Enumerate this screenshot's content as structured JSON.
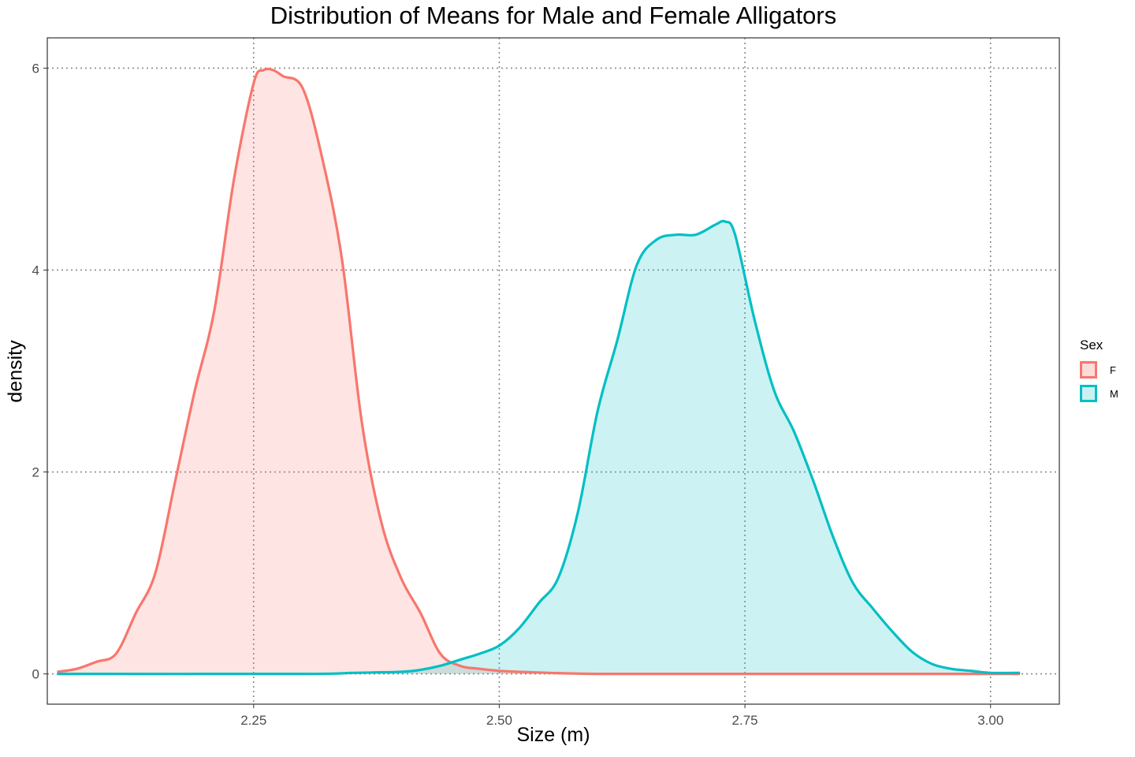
{
  "chart_data": {
    "type": "area",
    "title": "Distribution of Means for Male and Female Alligators",
    "xlabel": "Size (m)",
    "ylabel": "density",
    "xlim": [
      2.04,
      3.07
    ],
    "ylim": [
      -0.3,
      6.3
    ],
    "x_ticks": [
      2.25,
      2.5,
      2.75,
      3.0
    ],
    "x_tick_labels": [
      "2.25",
      "2.50",
      "2.75",
      "3.00"
    ],
    "y_ticks": [
      0,
      2,
      4,
      6
    ],
    "y_tick_labels": [
      "0",
      "2",
      "4",
      "6"
    ],
    "grid": "dotted major gridlines",
    "legend": {
      "title": "Sex",
      "placement": "right",
      "entries": [
        {
          "label": "F",
          "line_color": "#F8766D",
          "fill_color": "#FDDCDA"
        },
        {
          "label": "M",
          "line_color": "#00BFC4",
          "fill_color": "#CCF0F1"
        }
      ]
    },
    "series": [
      {
        "name": "F",
        "x": [
          2.05,
          2.07,
          2.09,
          2.11,
          2.13,
          2.15,
          2.17,
          2.19,
          2.21,
          2.23,
          2.25,
          2.26,
          2.27,
          2.28,
          2.3,
          2.32,
          2.34,
          2.36,
          2.38,
          2.4,
          2.42,
          2.44,
          2.46,
          2.48,
          2.5,
          2.52,
          2.55,
          2.6,
          2.7,
          2.8,
          2.9,
          3.0,
          3.03
        ],
        "y": [
          0.02,
          0.05,
          0.12,
          0.2,
          0.6,
          1.0,
          1.9,
          2.8,
          3.6,
          4.9,
          5.85,
          5.98,
          5.98,
          5.92,
          5.8,
          5.1,
          4.1,
          2.5,
          1.5,
          0.95,
          0.6,
          0.2,
          0.08,
          0.05,
          0.03,
          0.02,
          0.01,
          0.0,
          0.0,
          0.0,
          0.0,
          0.0,
          0.0
        ]
      },
      {
        "name": "M",
        "x": [
          2.05,
          2.3,
          2.35,
          2.4,
          2.42,
          2.44,
          2.46,
          2.48,
          2.5,
          2.52,
          2.54,
          2.56,
          2.58,
          2.6,
          2.62,
          2.64,
          2.66,
          2.68,
          2.7,
          2.72,
          2.73,
          2.74,
          2.76,
          2.78,
          2.8,
          2.82,
          2.84,
          2.86,
          2.88,
          2.9,
          2.92,
          2.94,
          2.96,
          2.98,
          3.0,
          3.03
        ],
        "y": [
          0.0,
          0.0,
          0.01,
          0.02,
          0.04,
          0.08,
          0.14,
          0.2,
          0.28,
          0.45,
          0.7,
          0.95,
          1.6,
          2.6,
          3.3,
          4.05,
          4.3,
          4.35,
          4.35,
          4.45,
          4.48,
          4.35,
          3.5,
          2.8,
          2.4,
          1.9,
          1.35,
          0.9,
          0.65,
          0.42,
          0.22,
          0.1,
          0.05,
          0.03,
          0.01,
          0.01
        ]
      }
    ]
  }
}
